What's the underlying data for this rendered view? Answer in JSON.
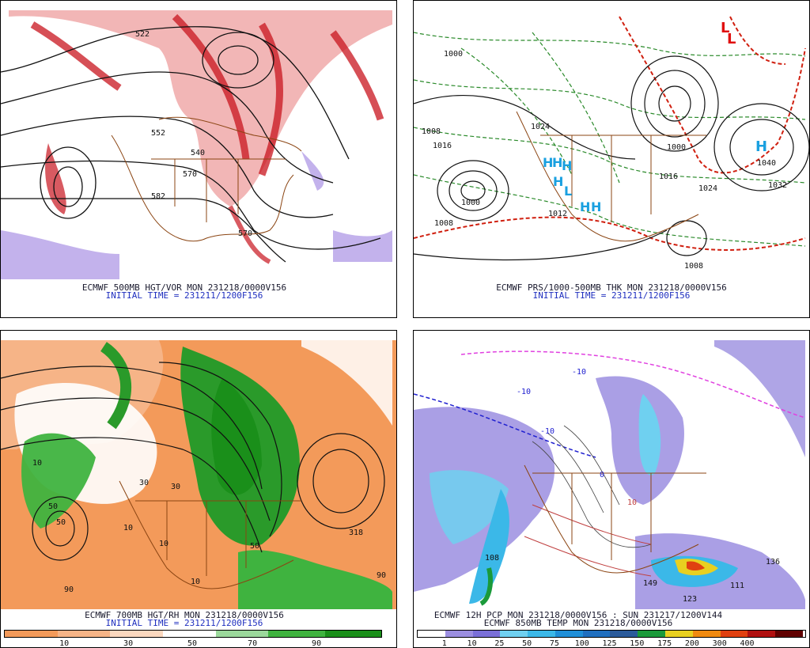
{
  "panels": {
    "top_left": {
      "caption": "ECMWF 500MB HGT/VOR MON 231218/0000V156",
      "initial_time": "INITIAL TIME = 231211/1200F156",
      "labels": [
        "522",
        "552",
        "540",
        "570",
        "582",
        "570"
      ]
    },
    "top_right": {
      "caption": "ECMWF PRS/1000-500MB THK MON 231218/0000V156",
      "initial_time": "INITIAL TIME = 231211/1200F156",
      "labels": [
        "1000",
        "1008",
        "1016",
        "1024",
        "1000",
        "1008",
        "1040",
        "1032",
        "1024",
        "1016",
        "1000",
        "1008",
        "1012"
      ],
      "high_marks": [
        "H",
        "H",
        "H",
        "H",
        "H",
        "H",
        "H"
      ],
      "low_marks": [
        "L",
        "L",
        "L"
      ]
    },
    "bottom_left": {
      "caption": "ECMWF 700MB HGT/RH MON 231218/0000V156",
      "initial_time": "INITIAL TIME = 231211/1200F156",
      "labels": [
        "10",
        "30",
        "50",
        "10",
        "50",
        "90",
        "318",
        "50",
        "10",
        "30",
        "10",
        "90"
      ],
      "colorbar_ticks": [
        "10",
        "30",
        "50",
        "70",
        "90"
      ]
    },
    "bottom_right": {
      "caption": "ECMWF 12H PCP MON 231218/0000V156 : SUN 231217/1200V144",
      "caption2": "ECMWF 850MB TEMP MON 231218/0000V156",
      "labels": [
        "-10",
        "-10",
        "0",
        "10",
        "-10",
        "136",
        "149",
        "123",
        "108",
        "111"
      ],
      "colorbar_ticks": [
        "1",
        "10",
        "25",
        "50",
        "75",
        "100",
        "125",
        "150",
        "175",
        "200",
        "300",
        "400"
      ]
    }
  },
  "colors": {
    "rh_bar": [
      "#f39a5a",
      "#f6b487",
      "#fbd8bf",
      "#ffffff",
      "#ffffff",
      "#9bd89b",
      "#3fb33f",
      "#1a8f1a"
    ],
    "pcp_bar": [
      "#ffffff",
      "#9b8ee0",
      "#7a6fd8",
      "#6fd0f0",
      "#3bb8e8",
      "#1f8fd8",
      "#1f6fbf",
      "#2a5a9a",
      "#1a9a3a",
      "#e8d020",
      "#f08a10",
      "#e04010",
      "#b01010",
      "#600000"
    ]
  }
}
